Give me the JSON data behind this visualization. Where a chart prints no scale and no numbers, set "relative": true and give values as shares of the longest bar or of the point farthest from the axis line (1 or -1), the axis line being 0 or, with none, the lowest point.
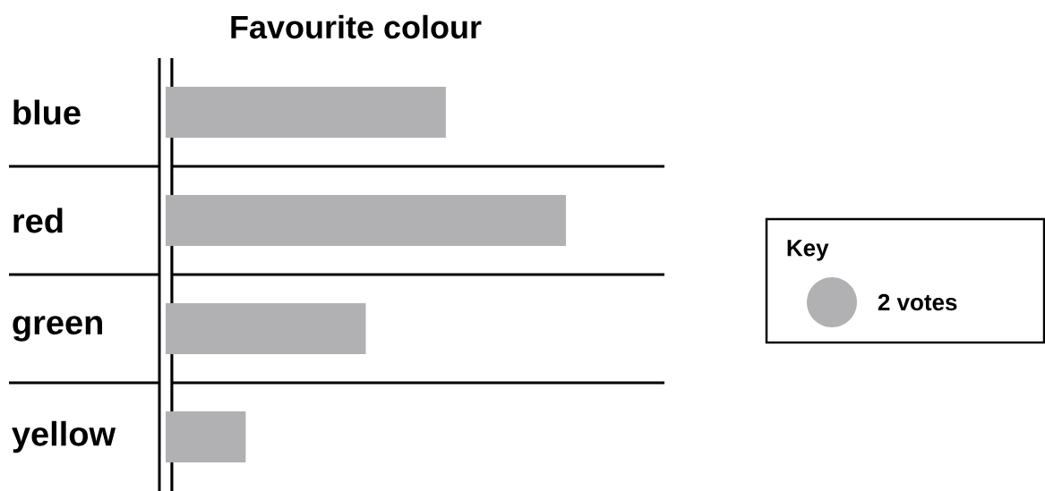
{
  "chart_data": {
    "type": "bar",
    "title": "Favourite colour",
    "orientation": "horizontal",
    "relative": true,
    "categories": [
      "blue",
      "red",
      "green",
      "yellow"
    ],
    "values": [
      0.7,
      1,
      0.5,
      0.2
    ],
    "color": "#b1b1b3",
    "annotations": [
      "Key",
      "2 votes"
    ]
  }
}
